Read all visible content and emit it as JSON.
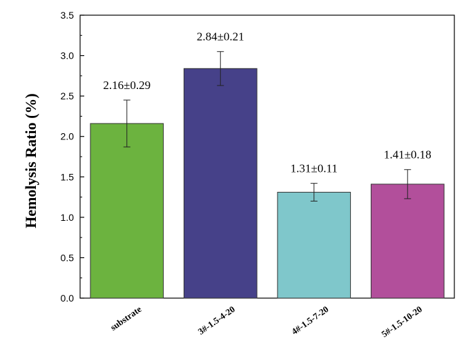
{
  "chart_data": {
    "type": "bar",
    "ylabel": "Hemolysis Ratio (%)",
    "xlabel": "",
    "ylim": [
      0,
      3.5
    ],
    "yticks": [
      "0.0",
      "0.5",
      "1.0",
      "1.5",
      "2.0",
      "2.5",
      "3.0",
      "3.5"
    ],
    "categories": [
      "substrate",
      "3#-1.5-4-20",
      "4#-1.5-7-20",
      "5#-1.5-10-20"
    ],
    "values": [
      2.16,
      2.84,
      1.31,
      1.41
    ],
    "errors": [
      0.29,
      0.21,
      0.11,
      0.18
    ],
    "data_labels": [
      "2.16±0.29",
      "2.84±0.21",
      "1.31±0.11",
      "1.41±0.18"
    ],
    "colors": [
      "#6cb33f",
      "#464189",
      "#7fc7cb",
      "#b24f9b"
    ],
    "grid": false,
    "legend": "none"
  }
}
